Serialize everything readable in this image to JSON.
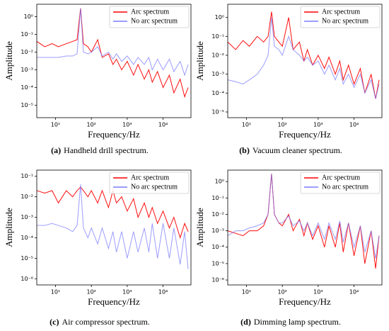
{
  "chart_data": [
    {
      "type": "line",
      "caption_label": "(a)",
      "caption": "Handheld drill spectrum.",
      "xlabel": "Frequency/Hz",
      "ylabel": "Amplitude",
      "xscale": "log",
      "yscale": "log",
      "legend": "upper right",
      "xlim": [
        3,
        60000
      ],
      "ylim": [
        2e-06,
        5
      ],
      "xticks": [
        {
          "value": 10,
          "label": "10¹"
        },
        {
          "value": 100,
          "label": "10²"
        },
        {
          "value": 1000,
          "label": "10³"
        },
        {
          "value": 10000,
          "label": "10⁴"
        }
      ],
      "yticks": [
        {
          "value": 1e-05,
          "label": "10⁻⁵"
        },
        {
          "value": 0.0001,
          "label": "10⁻⁴"
        },
        {
          "value": 0.001,
          "label": "10⁻³"
        },
        {
          "value": 0.01,
          "label": "10⁻²"
        },
        {
          "value": 0.1,
          "label": "10⁻¹"
        },
        {
          "value": 1,
          "label": "10⁰"
        }
      ],
      "x": [
        3,
        5,
        8,
        12,
        20,
        30,
        40,
        50,
        60,
        80,
        100,
        150,
        200,
        300,
        400,
        500,
        700,
        1000,
        1500,
        2000,
        3000,
        4000,
        5000,
        7000,
        10000,
        15000,
        20000,
        30000,
        40000,
        50000
      ],
      "series": [
        {
          "name": "Arc spectrum",
          "color": "#ff0000",
          "values": [
            0.04,
            0.02,
            0.03,
            0.02,
            0.03,
            0.04,
            0.05,
            3,
            0.03,
            0.02,
            0.01,
            0.05,
            0.005,
            0.008,
            0.002,
            0.004,
            0.001,
            0.003,
            0.0005,
            0.002,
            0.0003,
            0.001,
            0.0002,
            0.0008,
            0.0001,
            0.0005,
            5e-05,
            0.0003,
            3e-05,
            0.0001
          ]
        },
        {
          "name": "No arc spectrum",
          "color": "#7b7bff",
          "values": [
            0.005,
            0.005,
            0.005,
            0.005,
            0.006,
            0.006,
            0.008,
            3,
            0.01,
            0.008,
            0.01,
            0.02,
            0.006,
            0.01,
            0.004,
            0.008,
            0.003,
            0.006,
            0.002,
            0.005,
            0.002,
            0.005,
            0.001,
            0.004,
            0.001,
            0.004,
            0.0008,
            0.003,
            0.0005,
            0.002
          ]
        }
      ]
    },
    {
      "type": "line",
      "caption_label": "(b)",
      "caption": "Vacuum cleaner spectrum.",
      "xlabel": "Frequency/Hz",
      "ylabel": "Amplitude",
      "xscale": "log",
      "yscale": "log",
      "legend": "upper right",
      "xlim": [
        3,
        60000
      ],
      "ylim": [
        5e-06,
        5
      ],
      "xticks": [
        {
          "value": 10,
          "label": "10¹"
        },
        {
          "value": 100,
          "label": "10²"
        },
        {
          "value": 1000,
          "label": "10³"
        },
        {
          "value": 10000,
          "label": "10⁴"
        }
      ],
      "yticks": [
        {
          "value": 1e-05,
          "label": "10⁻⁵"
        },
        {
          "value": 0.0001,
          "label": "10⁻⁴"
        },
        {
          "value": 0.001,
          "label": "10⁻³"
        },
        {
          "value": 0.01,
          "label": "10⁻²"
        },
        {
          "value": 0.1,
          "label": "10⁻¹"
        },
        {
          "value": 1,
          "label": "10⁰"
        }
      ],
      "x": [
        3,
        5,
        8,
        12,
        20,
        30,
        40,
        50,
        60,
        80,
        100,
        150,
        200,
        300,
        400,
        500,
        700,
        1000,
        1500,
        2000,
        3000,
        4000,
        5000,
        7000,
        10000,
        15000,
        20000,
        30000,
        40000,
        50000
      ],
      "series": [
        {
          "name": "Arc spectrum",
          "color": "#ff0000",
          "values": [
            0.05,
            0.02,
            0.06,
            0.03,
            0.1,
            0.05,
            0.1,
            2,
            0.1,
            0.05,
            0.03,
            1,
            0.02,
            0.05,
            0.005,
            0.02,
            0.003,
            0.01,
            0.002,
            0.008,
            0.001,
            0.005,
            0.0005,
            0.003,
            0.0003,
            0.002,
            0.0001,
            0.001,
            5e-05,
            0.0005
          ]
        },
        {
          "name": "No arc spectrum",
          "color": "#7b7bff",
          "values": [
            0.0005,
            0.0004,
            0.0003,
            0.0005,
            0.001,
            0.003,
            0.01,
            1,
            0.03,
            0.02,
            0.01,
            0.1,
            0.02,
            0.01,
            0.005,
            0.008,
            0.003,
            0.005,
            0.001,
            0.003,
            0.0005,
            0.002,
            0.0003,
            0.001,
            0.0002,
            0.001,
            0.0001,
            0.0005,
            5e-05,
            0.0003
          ]
        }
      ]
    },
    {
      "type": "line",
      "caption_label": "(c)",
      "caption": "Air compressor spectrum.",
      "xlabel": "Frequency/Hz",
      "ylabel": "Amplitude",
      "xscale": "log",
      "yscale": "log",
      "legend": "upper right",
      "xlim": [
        3,
        60000
      ],
      "ylim": [
        5e-07,
        0.2
      ],
      "xticks": [
        {
          "value": 10,
          "label": "10¹"
        },
        {
          "value": 100,
          "label": "10²"
        },
        {
          "value": 1000,
          "label": "10³"
        },
        {
          "value": 10000,
          "label": "10⁴"
        }
      ],
      "yticks": [
        {
          "value": 1e-06,
          "label": "10⁻⁶"
        },
        {
          "value": 1e-05,
          "label": "10⁻⁵"
        },
        {
          "value": 0.0001,
          "label": "10⁻⁴"
        },
        {
          "value": 0.001,
          "label": "10⁻³"
        },
        {
          "value": 0.01,
          "label": "10⁻²"
        },
        {
          "value": 0.1,
          "label": "10⁻¹"
        }
      ],
      "x": [
        3,
        5,
        8,
        12,
        20,
        30,
        40,
        50,
        60,
        80,
        100,
        150,
        200,
        300,
        400,
        500,
        700,
        1000,
        1500,
        2000,
        3000,
        4000,
        5000,
        7000,
        10000,
        15000,
        20000,
        30000,
        40000,
        50000
      ],
      "series": [
        {
          "name": "Arc spectrum",
          "color": "#ff0000",
          "values": [
            0.02,
            0.015,
            0.02,
            0.005,
            0.02,
            0.01,
            0.02,
            0.03,
            0.02,
            0.01,
            0.02,
            0.005,
            0.02,
            0.003,
            0.02,
            0.005,
            0.01,
            0.002,
            0.008,
            0.001,
            0.005,
            0.001,
            0.003,
            0.0005,
            0.002,
            0.0003,
            0.001,
            0.0001,
            0.0005,
            0.0002
          ]
        },
        {
          "name": "No arc spectrum",
          "color": "#7b7bff",
          "values": [
            0.0004,
            0.0004,
            0.0005,
            0.0004,
            0.0003,
            0.0002,
            0.0004,
            0.04,
            0.0003,
            0.0001,
            0.0003,
            5e-05,
            0.0003,
            3e-05,
            0.0002,
            2e-05,
            0.0002,
            1e-05,
            0.0002,
            2e-05,
            0.0003,
            2e-05,
            0.0005,
            1e-05,
            0.0005,
            1e-05,
            0.0003,
            5e-06,
            0.0002,
            3e-06
          ]
        }
      ]
    },
    {
      "type": "line",
      "caption_label": "(d)",
      "caption": "Dimming lamp spectrum.",
      "xlabel": "Frequency/Hz",
      "ylabel": "Amplitude",
      "xscale": "log",
      "yscale": "log",
      "legend": "upper right",
      "xlim": [
        3,
        60000
      ],
      "ylim": [
        5e-07,
        5
      ],
      "xticks": [
        {
          "value": 10,
          "label": "10¹"
        },
        {
          "value": 100,
          "label": "10²"
        },
        {
          "value": 1000,
          "label": "10³"
        },
        {
          "value": 10000,
          "label": "10⁴"
        }
      ],
      "yticks": [
        {
          "value": 1e-06,
          "label": "10⁻⁶"
        },
        {
          "value": 1e-05,
          "label": "10⁻⁵"
        },
        {
          "value": 0.0001,
          "label": "10⁻⁴"
        },
        {
          "value": 0.001,
          "label": "10⁻³"
        },
        {
          "value": 0.01,
          "label": "10⁻²"
        },
        {
          "value": 0.1,
          "label": "10⁻¹"
        },
        {
          "value": 1,
          "label": "10⁰"
        }
      ],
      "x": [
        3,
        5,
        8,
        12,
        20,
        30,
        40,
        50,
        60,
        80,
        100,
        150,
        200,
        300,
        400,
        500,
        700,
        1000,
        1500,
        2000,
        3000,
        4000,
        5000,
        7000,
        10000,
        15000,
        20000,
        30000,
        40000,
        50000
      ],
      "series": [
        {
          "name": "Arc spectrum",
          "color": "#ff0000",
          "values": [
            0.001,
            0.0007,
            0.0005,
            0.001,
            0.001,
            0.002,
            0.01,
            3,
            0.01,
            0.003,
            0.002,
            0.01,
            0.001,
            0.005,
            0.0005,
            0.003,
            0.0003,
            0.002,
            0.0001,
            0.002,
            0.0001,
            0.003,
            5e-05,
            0.003,
            3e-05,
            0.002,
            1e-05,
            0.001,
            5e-06,
            0.0005
          ]
        },
        {
          "name": "No arc spectrum",
          "color": "#7b7bff",
          "values": [
            0.0005,
            0.001,
            0.001,
            0.0015,
            0.002,
            0.003,
            0.01,
            3,
            0.01,
            0.003,
            0.003,
            0.008,
            0.002,
            0.004,
            0.001,
            0.003,
            0.0005,
            0.003,
            0.0003,
            0.003,
            0.0003,
            0.004,
            0.0002,
            0.003,
            0.0001,
            0.002,
            5e-05,
            0.001,
            2e-05,
            0.0005
          ]
        }
      ]
    }
  ]
}
